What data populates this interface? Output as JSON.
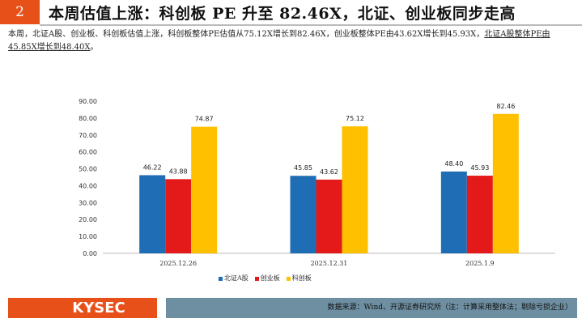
{
  "header": {
    "number": "2",
    "title": "本周估值上涨：科创板 PE 升至 82.46X，北证、创业板同步走高"
  },
  "summary": {
    "text": "本周，北证A股、创业板、科创板估值上涨，科创板整体PE估值从75.12X增长到82.46X，创业板整体PE由43.62X增长到45.93X，",
    "underlined": "北证A股整体PE由45.85X增长到48.40X",
    "tail": "。"
  },
  "chart_data": {
    "type": "bar",
    "categories": [
      "2025.12.26",
      "2025.12.31",
      "2025.1.9"
    ],
    "series": [
      {
        "name": "北证A股",
        "color": "#1F6DB5",
        "values": [
          46.22,
          45.85,
          48.4
        ]
      },
      {
        "name": "创业板",
        "color": "#E41A1A",
        "values": [
          43.88,
          43.62,
          45.93
        ]
      },
      {
        "name": "科创板",
        "color": "#FFC000",
        "values": [
          74.87,
          75.12,
          82.46
        ]
      }
    ],
    "ylim": [
      0,
      90
    ],
    "yticks": [
      "0.00",
      "10.00",
      "20.00",
      "30.00",
      "40.00",
      "50.00",
      "60.00",
      "70.00",
      "80.00",
      "90.00"
    ],
    "legend": "bottom"
  },
  "footer": {
    "logo": "KYSEC",
    "source": "数据来源：Wind、开源证券研究所（注：计算采用整体法；剔除亏损企业）"
  }
}
